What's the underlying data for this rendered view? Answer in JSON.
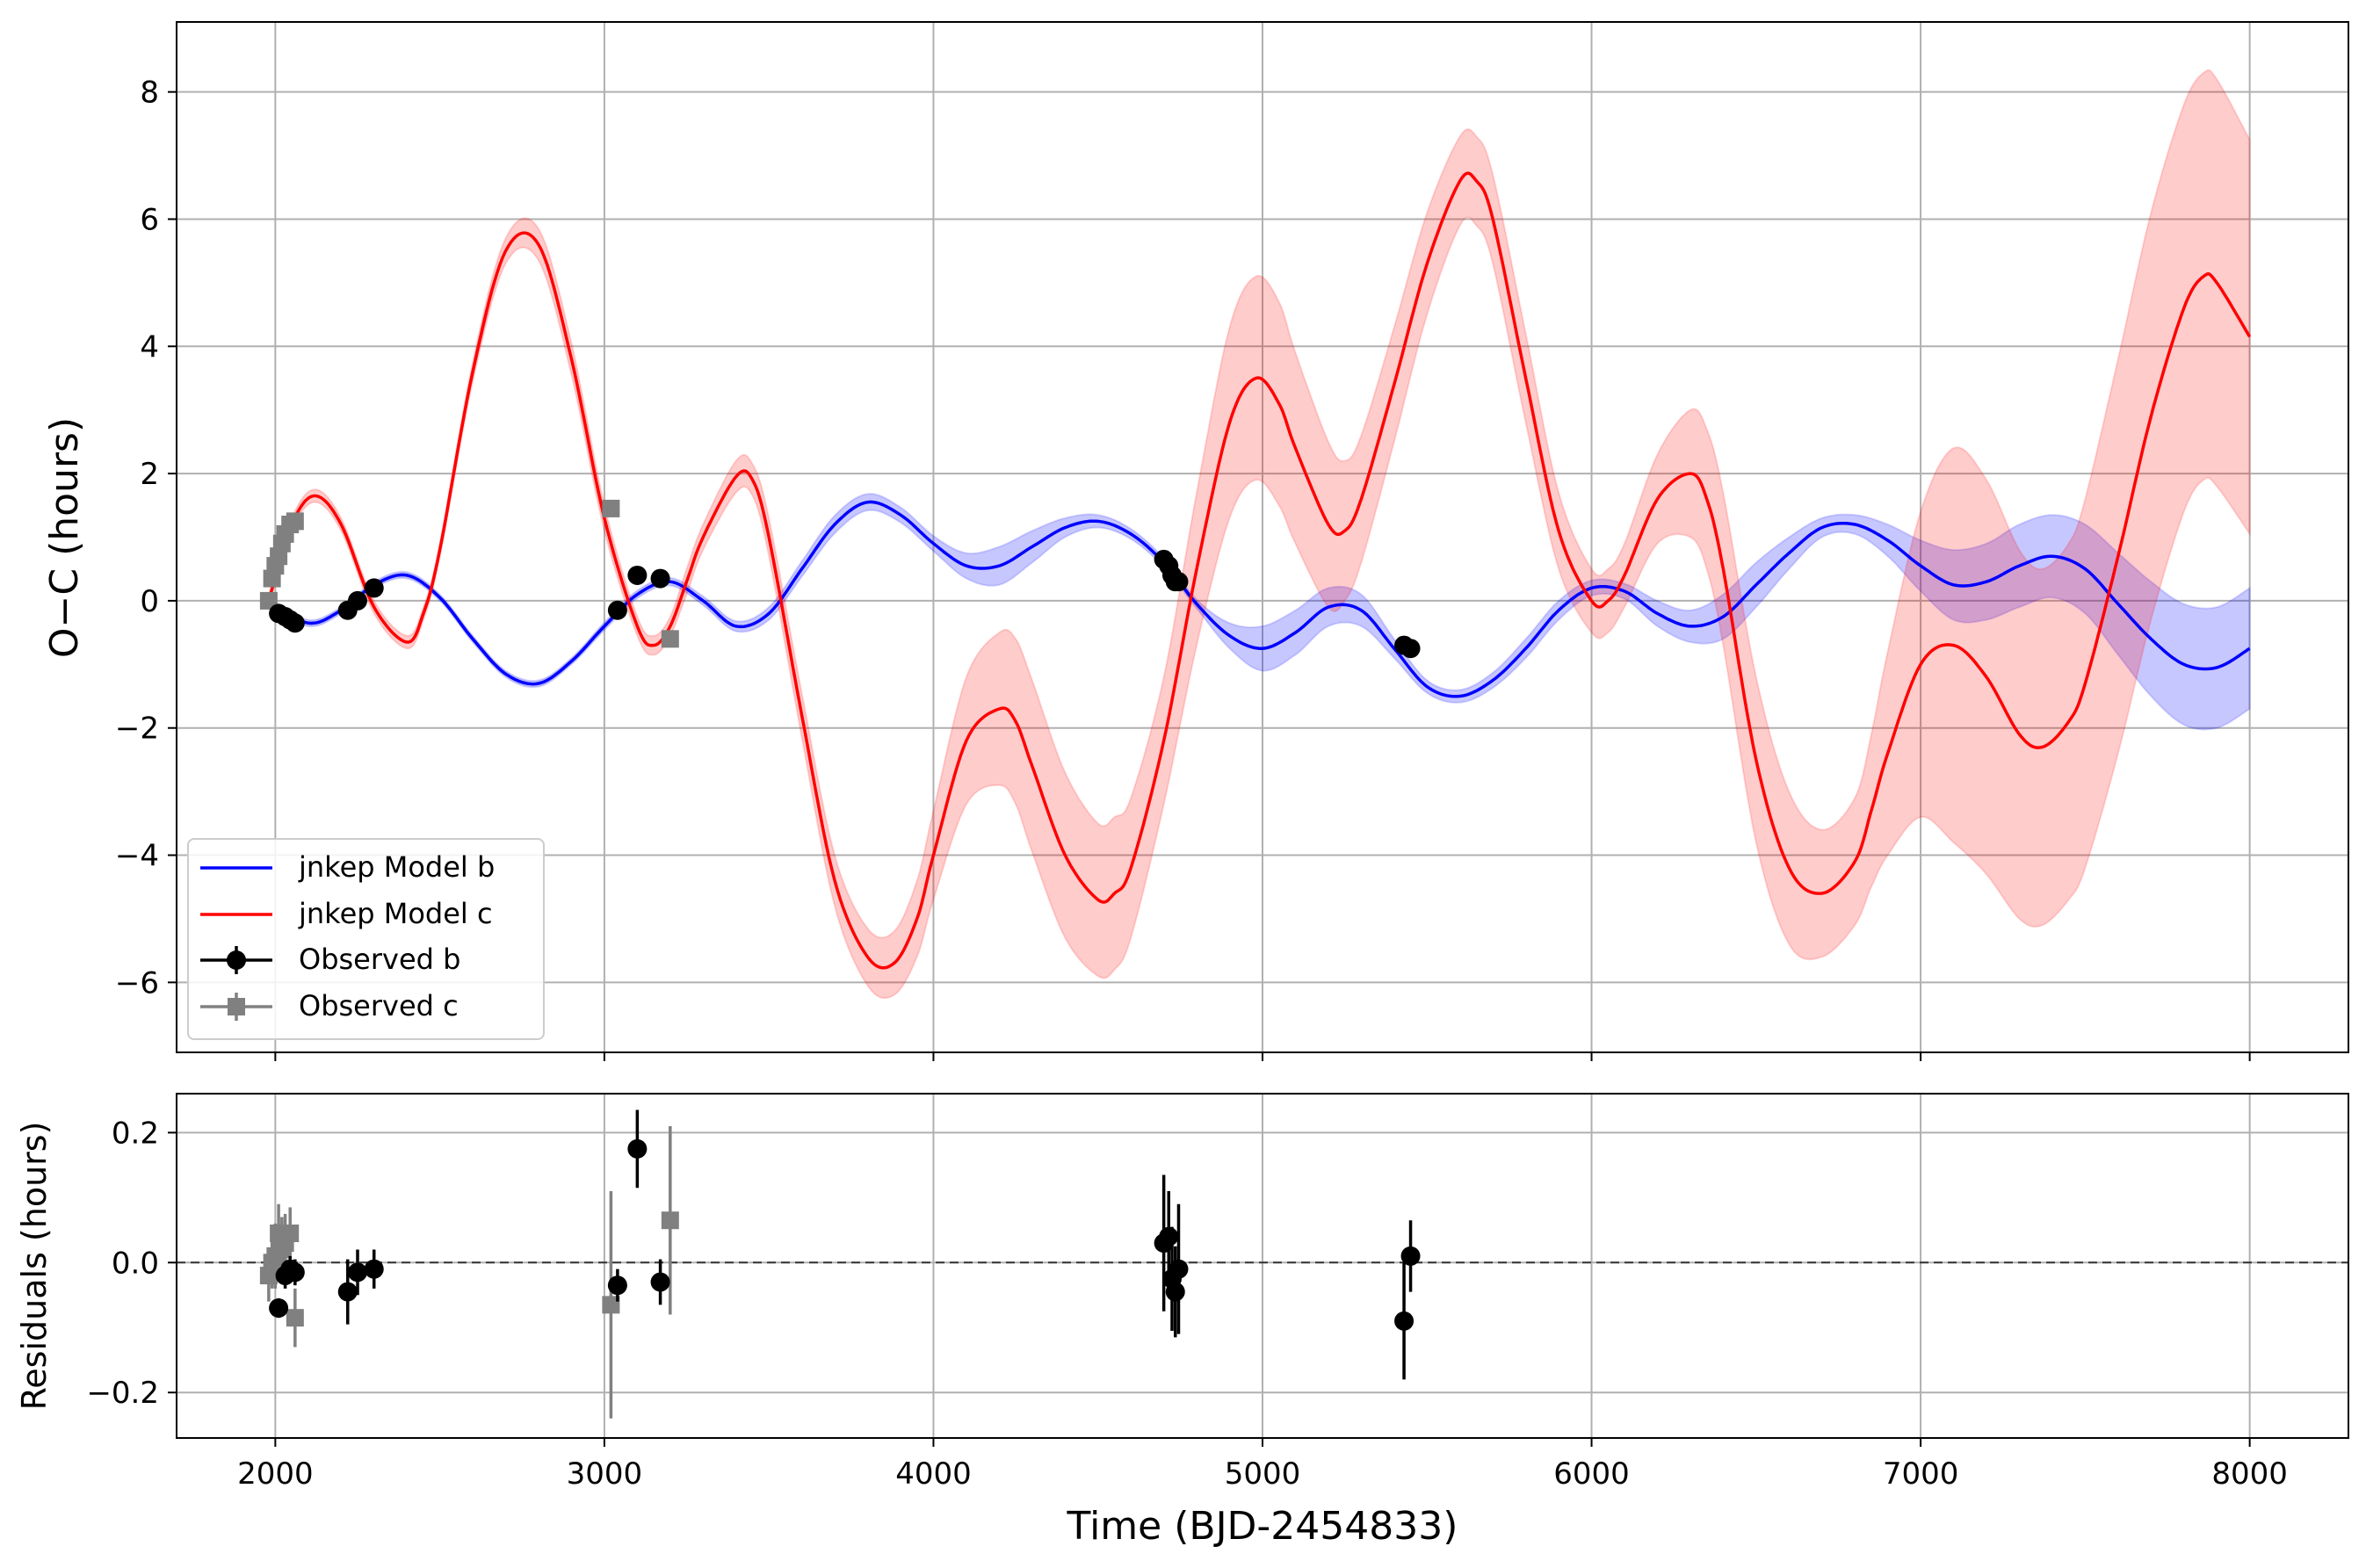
{
  "chart_data": [
    {
      "type": "line",
      "panel": "top",
      "xlabel": "",
      "ylabel": "O−C (hours)",
      "xlim": [
        1700,
        8300
      ],
      "ylim": [
        -7.1,
        9.1
      ],
      "yticks": [
        8,
        6,
        4,
        2,
        0,
        -2,
        -4,
        -6
      ],
      "ytick_labels": [
        "8",
        "6",
        "4",
        "2",
        "0",
        "−2",
        "−4",
        "−6"
      ],
      "xticks": [
        2000,
        3000,
        4000,
        5000,
        6000,
        7000,
        8000
      ],
      "grid": true,
      "legend_position": "lower-left",
      "legend": [
        {
          "label": "jnkep Model b",
          "kind": "line",
          "color": "#0000ff"
        },
        {
          "label": "jnkep Model c",
          "kind": "line",
          "color": "#ff0000"
        },
        {
          "label": "Observed b",
          "kind": "errorbar",
          "color": "#000000"
        },
        {
          "label": "Observed c",
          "kind": "errorbar",
          "color": "#808080"
        }
      ],
      "series": [
        {
          "name": "jnkep Model b",
          "color": "#0000ff",
          "band_color": "#0000ff",
          "x": [
            1980,
            2100,
            2200,
            2300,
            2400,
            2500,
            2600,
            2700,
            2800,
            2900,
            3000,
            3100,
            3200,
            3300,
            3400,
            3500,
            3600,
            3700,
            3800,
            3900,
            4000,
            4100,
            4200,
            4300,
            4400,
            4500,
            4600,
            4700,
            4800,
            4900,
            5000,
            5100,
            5200,
            5300,
            5400,
            5500,
            5600,
            5700,
            5800,
            5900,
            6000,
            6100,
            6200,
            6300,
            6400,
            6500,
            6600,
            6700,
            6800,
            6900,
            7000,
            7100,
            7200,
            7300,
            7400,
            7500,
            7600,
            7700,
            7800,
            7900,
            8000
          ],
          "values": [
            0.0,
            -0.35,
            -0.15,
            0.25,
            0.4,
            0.05,
            -0.6,
            -1.15,
            -1.3,
            -0.95,
            -0.4,
            0.1,
            0.3,
            0.0,
            -0.4,
            -0.2,
            0.5,
            1.2,
            1.55,
            1.35,
            0.9,
            0.55,
            0.55,
            0.85,
            1.15,
            1.25,
            1.05,
            0.6,
            -0.05,
            -0.55,
            -0.75,
            -0.5,
            -0.1,
            -0.15,
            -0.75,
            -1.35,
            -1.5,
            -1.25,
            -0.75,
            -0.15,
            0.2,
            0.15,
            -0.2,
            -0.4,
            -0.25,
            0.25,
            0.75,
            1.15,
            1.2,
            0.95,
            0.55,
            0.25,
            0.3,
            0.55,
            0.7,
            0.5,
            -0.05,
            -0.6,
            -1.0,
            -1.05,
            -0.75
          ],
          "band_halfwidth": [
            0.05,
            0.05,
            0.05,
            0.05,
            0.05,
            0.05,
            0.05,
            0.05,
            0.05,
            0.05,
            0.06,
            0.06,
            0.06,
            0.07,
            0.08,
            0.1,
            0.12,
            0.14,
            0.13,
            0.12,
            0.12,
            0.2,
            0.3,
            0.25,
            0.15,
            0.1,
            0.08,
            0.07,
            0.07,
            0.2,
            0.35,
            0.35,
            0.3,
            0.25,
            0.15,
            0.1,
            0.1,
            0.12,
            0.15,
            0.15,
            0.12,
            0.12,
            0.2,
            0.25,
            0.35,
            0.35,
            0.25,
            0.15,
            0.15,
            0.25,
            0.4,
            0.55,
            0.6,
            0.65,
            0.65,
            0.7,
            0.8,
            0.9,
            0.95,
            0.95,
            0.95
          ]
        },
        {
          "name": "jnkep Model c",
          "color": "#ff0000",
          "band_color": "#ff0000",
          "x": [
            1980,
            2050,
            2120,
            2200,
            2300,
            2400,
            2450,
            2500,
            2600,
            2700,
            2800,
            2900,
            3000,
            3100,
            3150,
            3200,
            3250,
            3300,
            3400,
            3450,
            3500,
            3600,
            3700,
            3800,
            3880,
            3950,
            4000,
            4100,
            4200,
            4250,
            4300,
            4400,
            4500,
            4550,
            4600,
            4700,
            4800,
            4900,
            4980,
            5050,
            5100,
            5200,
            5250,
            5300,
            5400,
            5500,
            5600,
            5650,
            5700,
            5800,
            5900,
            6000,
            6050,
            6100,
            6200,
            6300,
            6350,
            6400,
            6500,
            6600,
            6700,
            6800,
            6850,
            6900,
            7000,
            7100,
            7200,
            7300,
            7370,
            7450,
            7500,
            7600,
            7700,
            7800,
            7860,
            7900,
            8000
          ],
          "values": [
            0.0,
            1.2,
            1.65,
            1.2,
            -0.1,
            -0.65,
            -0.2,
            0.8,
            3.6,
            5.5,
            5.6,
            3.8,
            1.3,
            -0.4,
            -0.7,
            -0.4,
            0.3,
            1.0,
            1.95,
            1.9,
            1.0,
            -1.8,
            -4.4,
            -5.6,
            -5.7,
            -5.0,
            -4.0,
            -2.2,
            -1.7,
            -1.9,
            -2.6,
            -4.0,
            -4.7,
            -4.6,
            -4.2,
            -2.2,
            0.5,
            2.8,
            3.5,
            3.1,
            2.4,
            1.2,
            1.1,
            1.6,
            3.4,
            5.3,
            6.6,
            6.6,
            6.0,
            3.5,
            1.1,
            0.0,
            0.0,
            0.4,
            1.6,
            2.0,
            1.6,
            0.5,
            -2.5,
            -4.2,
            -4.6,
            -4.1,
            -3.3,
            -2.4,
            -1.0,
            -0.7,
            -1.2,
            -2.1,
            -2.3,
            -1.9,
            -1.3,
            0.7,
            2.9,
            4.6,
            5.1,
            5.0,
            4.15
          ],
          "band_halfwidth": [
            0.1,
            0.1,
            0.1,
            0.1,
            0.1,
            0.1,
            0.1,
            0.1,
            0.15,
            0.2,
            0.25,
            0.25,
            0.2,
            0.15,
            0.15,
            0.15,
            0.2,
            0.2,
            0.25,
            0.25,
            0.3,
            0.35,
            0.4,
            0.45,
            0.5,
            0.6,
            0.7,
            1.0,
            1.2,
            1.3,
            1.35,
            1.3,
            1.2,
            1.2,
            1.1,
            1.0,
            1.2,
            1.5,
            1.6,
            1.6,
            1.5,
            1.3,
            1.1,
            1.0,
            0.9,
            0.8,
            0.7,
            0.7,
            0.7,
            0.7,
            0.6,
            0.5,
            0.5,
            0.5,
            0.7,
            1.0,
            1.1,
            1.2,
            1.3,
            1.2,
            1.0,
            1.0,
            1.2,
            1.6,
            2.4,
            3.1,
            3.1,
            2.9,
            2.8,
            2.8,
            2.9,
            3.1,
            3.2,
            3.2,
            3.2,
            3.2,
            3.1
          ]
        }
      ],
      "observed_b": {
        "name": "Observed b",
        "color": "#000000",
        "x": [
          2010,
          2030,
          2045,
          2060,
          2220,
          2250,
          2300,
          3040,
          3100,
          3170,
          4700,
          4715,
          4725,
          4735,
          4745,
          5430,
          5450
        ],
        "y": [
          -0.2,
          -0.25,
          -0.3,
          -0.35,
          -0.15,
          0.0,
          0.2,
          -0.15,
          0.4,
          0.35,
          0.65,
          0.55,
          0.4,
          0.3,
          0.3,
          -0.7,
          -0.75
        ]
      },
      "observed_c": {
        "name": "Observed c",
        "color": "#808080",
        "x": [
          1980,
          1990,
          2000,
          2010,
          2020,
          2030,
          2045,
          2060,
          3020,
          3200
        ],
        "y": [
          0.0,
          0.35,
          0.55,
          0.7,
          0.9,
          1.05,
          1.2,
          1.25,
          1.45,
          -0.6
        ]
      }
    },
    {
      "type": "scatter",
      "panel": "bottom",
      "xlabel": "Time (BJD-2454833)",
      "ylabel": "Residuals (hours)",
      "xlim": [
        1700,
        8300
      ],
      "ylim": [
        -0.27,
        0.26
      ],
      "yticks": [
        0.2,
        0.0,
        -0.2
      ],
      "ytick_labels": [
        "0.2",
        "0.0",
        "−0.2"
      ],
      "xticks": [
        2000,
        3000,
        4000,
        5000,
        6000,
        7000,
        8000
      ],
      "xtick_labels": [
        "2000",
        "3000",
        "4000",
        "5000",
        "6000",
        "7000",
        "8000"
      ],
      "grid": true,
      "reference_line": 0.0,
      "residuals_b": {
        "name": "Observed b",
        "color": "#000000",
        "x": [
          2010,
          2030,
          2045,
          2060,
          2220,
          2250,
          2300,
          3040,
          3100,
          3170,
          4700,
          4715,
          4725,
          4735,
          4745,
          5430,
          5450
        ],
        "y": [
          -0.07,
          -0.02,
          -0.01,
          -0.015,
          -0.045,
          -0.015,
          -0.01,
          -0.035,
          0.175,
          -0.03,
          0.03,
          0.04,
          -0.025,
          -0.045,
          -0.01,
          -0.09,
          0.01
        ],
        "err": [
          0.015,
          0.02,
          0.02,
          0.02,
          0.05,
          0.035,
          0.03,
          0.025,
          0.06,
          0.035,
          0.105,
          0.07,
          0.08,
          0.07,
          0.1,
          0.09,
          0.055
        ]
      },
      "residuals_c": {
        "name": "Observed c",
        "color": "#808080",
        "x": [
          1980,
          1990,
          2000,
          2010,
          2020,
          2030,
          2045,
          2060,
          3020,
          3200
        ],
        "y": [
          -0.02,
          0.0,
          0.01,
          0.045,
          0.02,
          0.03,
          0.045,
          -0.085,
          -0.065,
          0.065
        ],
        "err": [
          0.04,
          0.04,
          0.05,
          0.045,
          0.05,
          0.045,
          0.04,
          0.045,
          0.175,
          0.145
        ]
      }
    }
  ]
}
